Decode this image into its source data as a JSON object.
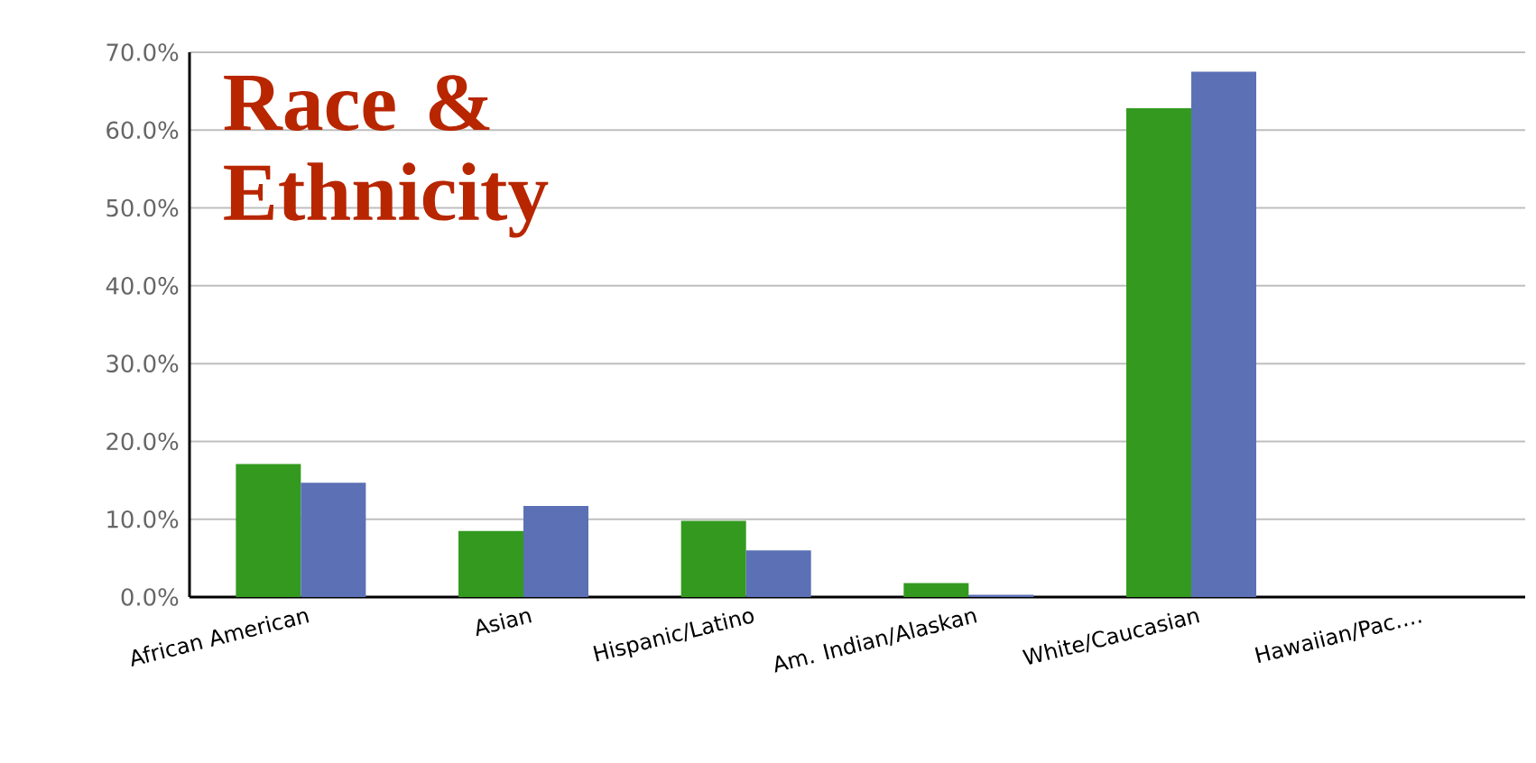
{
  "chart_data": {
    "type": "bar",
    "title": "Race & Ethnicity",
    "categories": [
      "African American",
      "Asian",
      "Hispanic/Latino",
      "Am. Indian/Alaskan",
      "White/Caucasian",
      "Hawaiian/Pac.…"
    ],
    "series": [
      {
        "color": "#339a1f",
        "values": [
          17.1,
          8.5,
          9.8,
          1.8,
          62.8,
          0
        ]
      },
      {
        "color": "#5b70b5",
        "values": [
          14.7,
          11.7,
          6.0,
          0.3,
          67.5,
          0
        ]
      }
    ],
    "ylim": [
      0,
      70
    ],
    "yticks": [
      {
        "value": 0,
        "label": "0.0%"
      },
      {
        "value": 10,
        "label": "10.0%"
      },
      {
        "value": 20,
        "label": "20.0%"
      },
      {
        "value": 30,
        "label": "30.0%"
      },
      {
        "value": 40,
        "label": "40.0%"
      },
      {
        "value": 50,
        "label": "50.0%"
      },
      {
        "value": 60,
        "label": "60.0%"
      },
      {
        "value": 70,
        "label": "70.0%"
      }
    ],
    "grid": "y"
  }
}
